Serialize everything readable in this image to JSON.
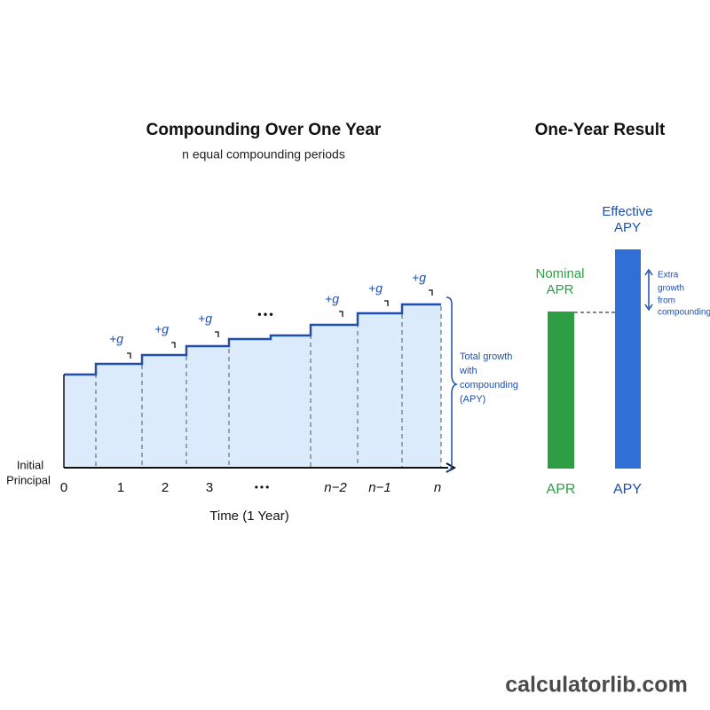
{
  "left": {
    "title": "Compounding Over One Year",
    "subtitle": "n equal compounding periods",
    "step_labels": [
      "+g",
      "+g",
      "+g",
      "+g",
      "+g",
      "+g"
    ],
    "ellipsis": "•••",
    "brace_label": [
      "Total growth",
      "with",
      "compounding",
      "(APY)"
    ],
    "y_label": [
      "Initial",
      "Principal"
    ],
    "x_ticks": [
      "0",
      "1",
      "2",
      "3",
      "•••",
      "n−2",
      "n−1",
      "n"
    ],
    "x_title": "Time (1 Year)"
  },
  "right": {
    "title": "One-Year Result",
    "nominal_label": [
      "Nominal",
      "APR"
    ],
    "effective_label": [
      "Effective",
      "APY"
    ],
    "extra_label": [
      "Extra",
      "growth",
      "from",
      "compounding"
    ],
    "apr": "APR",
    "apy": "APY"
  },
  "footer": "calculatorlib.com"
}
